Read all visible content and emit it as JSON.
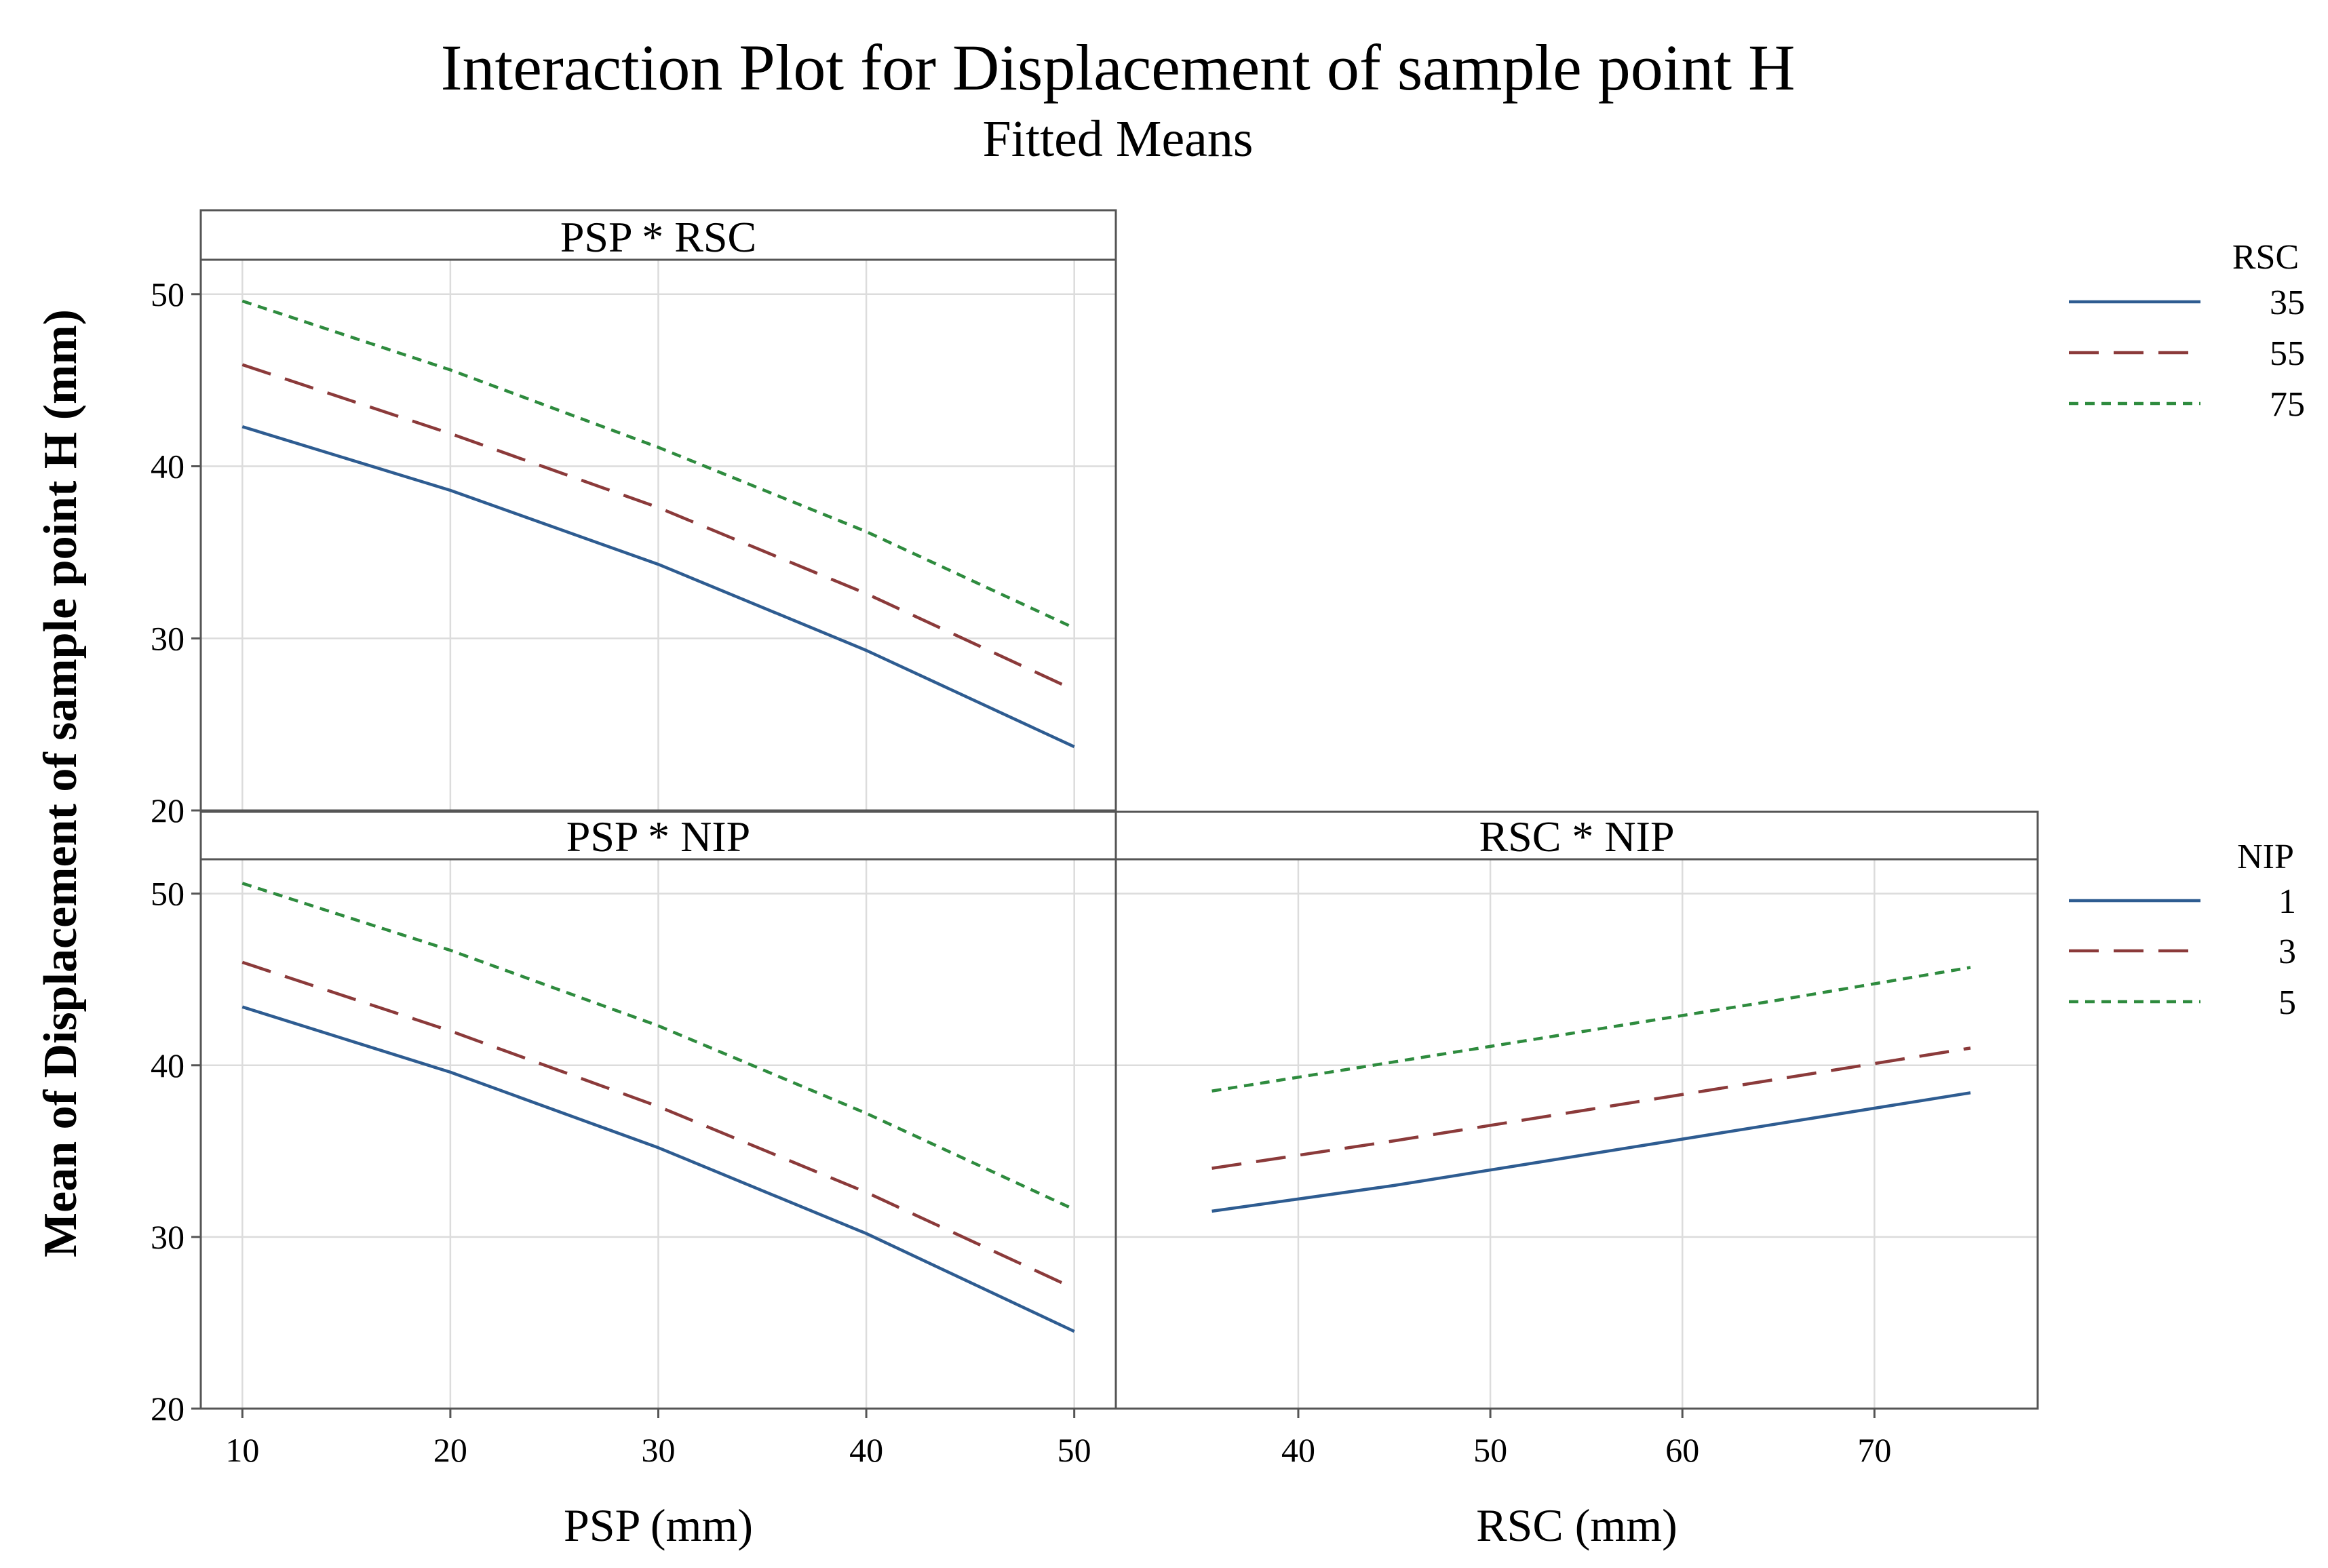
{
  "chart_data": {
    "type": "line",
    "title": "Interaction Plot for Displacement of sample point H",
    "subtitle": "Fitted Means",
    "ylabel": "Mean of Displacement of sample point H (mm)",
    "ylim": [
      20,
      52
    ],
    "yticks": [
      20,
      30,
      40,
      50
    ],
    "series_colors": [
      "#2e5c91",
      "#8b3a3a",
      "#2e8b3e"
    ],
    "panels": [
      {
        "id": "psp-rsc",
        "label": "PSP * RSC",
        "xlabel": "PSP (mm)",
        "xlim": [
          8,
          52
        ],
        "xticks": [
          10,
          20,
          30,
          40,
          50
        ],
        "series": [
          {
            "name": "35",
            "x": [
              10,
              20,
              30,
              40,
              50
            ],
            "values": [
              42.3,
              38.6,
              34.3,
              29.3,
              23.7
            ]
          },
          {
            "name": "55",
            "x": [
              10,
              20,
              30,
              40,
              50
            ],
            "values": [
              45.9,
              41.9,
              37.6,
              32.6,
              27.0
            ]
          },
          {
            "name": "75",
            "x": [
              10,
              20,
              30,
              40,
              50
            ],
            "values": [
              49.6,
              45.6,
              41.1,
              36.2,
              30.6
            ]
          }
        ]
      },
      {
        "id": "psp-nip",
        "label": "PSP * NIP",
        "xlabel": "PSP (mm)",
        "xlim": [
          8,
          52
        ],
        "xticks": [
          10,
          20,
          30,
          40,
          50
        ],
        "series": [
          {
            "name": "1",
            "x": [
              10,
              20,
              30,
              40,
              50
            ],
            "values": [
              43.4,
              39.6,
              35.2,
              30.2,
              24.5
            ]
          },
          {
            "name": "3",
            "x": [
              10,
              20,
              30,
              40,
              50
            ],
            "values": [
              46.0,
              42.0,
              37.6,
              32.6,
              27.0
            ]
          },
          {
            "name": "5",
            "x": [
              10,
              20,
              30,
              40,
              50
            ],
            "values": [
              50.6,
              46.7,
              42.3,
              37.2,
              31.6
            ]
          }
        ]
      },
      {
        "id": "rsc-nip",
        "label": "RSC * NIP",
        "xlabel": "RSC (mm)",
        "xlim": [
          30.5,
          78.5
        ],
        "xticks": [
          40,
          50,
          60,
          70
        ],
        "series": [
          {
            "name": "1",
            "x": [
              35.5,
              45,
              55,
              65,
              75
            ],
            "values": [
              31.5,
              33.0,
              34.8,
              36.6,
              38.4
            ]
          },
          {
            "name": "3",
            "x": [
              35.5,
              45,
              55,
              65,
              75
            ],
            "values": [
              34.0,
              35.6,
              37.4,
              39.2,
              41.0
            ]
          },
          {
            "name": "5",
            "x": [
              35.5,
              45,
              55,
              65,
              75
            ],
            "values": [
              38.5,
              40.2,
              42.0,
              43.8,
              45.7
            ]
          }
        ]
      }
    ],
    "legends": [
      {
        "id": "rsc",
        "title": "RSC",
        "entries": [
          "35",
          "55",
          "75"
        ]
      },
      {
        "id": "nip",
        "title": "NIP",
        "entries": [
          "1",
          "3",
          "5"
        ]
      }
    ]
  }
}
